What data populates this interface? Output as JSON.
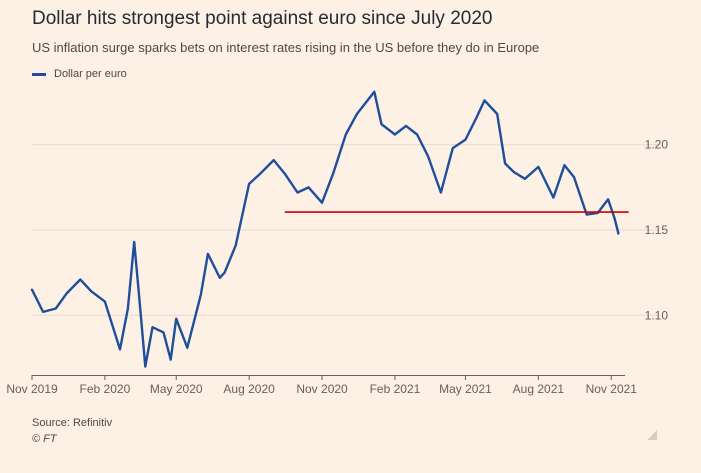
{
  "header": {
    "title": "Dollar hits strongest point against euro since July 2020",
    "subtitle": "US inflation surge sparks bets on interest rates rising in the US before they do in Europe"
  },
  "footer": {
    "source": "Source: Refinitiv",
    "copyright": "© FT"
  },
  "colors": {
    "series": "#1f4e9c",
    "reference_line": "#cc0000",
    "grid": "#e6d9ce",
    "axis": "#66605c",
    "background": "#fdf1e5"
  },
  "chart_data": {
    "type": "line",
    "title": "Dollar hits strongest point against euro since July 2020",
    "subtitle": "US inflation surge sparks bets on interest rates rising in the US before they do in Europe",
    "legend_position": "top-left",
    "grid": "horizontal",
    "x_ticks": [
      "Nov 2019",
      "Feb 2020",
      "May 2020",
      "Aug 2020",
      "Nov 2020",
      "Feb 2021",
      "May 2021",
      "Aug 2021",
      "Nov 2021"
    ],
    "y_ticks": [
      "1.10",
      "1.15",
      "1.20"
    ],
    "ylim": [
      1.065,
      1.235
    ],
    "xlim": [
      "2019-11-01",
      "2021-11-12"
    ],
    "y_axis_side": "right",
    "series": [
      {
        "name": "Dollar per euro",
        "color": "#1f4e9c",
        "points": [
          [
            "2019-11-01",
            1.115
          ],
          [
            "2019-11-15",
            1.102
          ],
          [
            "2019-12-01",
            1.104
          ],
          [
            "2019-12-15",
            1.113
          ],
          [
            "2020-01-01",
            1.121
          ],
          [
            "2020-01-15",
            1.114
          ],
          [
            "2020-02-01",
            1.108
          ],
          [
            "2020-02-20",
            1.08
          ],
          [
            "2020-03-01",
            1.104
          ],
          [
            "2020-03-09",
            1.143
          ],
          [
            "2020-03-15",
            1.112
          ],
          [
            "2020-03-23",
            1.07
          ],
          [
            "2020-04-01",
            1.093
          ],
          [
            "2020-04-15",
            1.09
          ],
          [
            "2020-04-24",
            1.074
          ],
          [
            "2020-05-01",
            1.098
          ],
          [
            "2020-05-15",
            1.081
          ],
          [
            "2020-06-01",
            1.112
          ],
          [
            "2020-06-10",
            1.136
          ],
          [
            "2020-06-25",
            1.122
          ],
          [
            "2020-07-01",
            1.125
          ],
          [
            "2020-07-15",
            1.141
          ],
          [
            "2020-08-01",
            1.177
          ],
          [
            "2020-08-15",
            1.183
          ],
          [
            "2020-09-01",
            1.191
          ],
          [
            "2020-09-15",
            1.183
          ],
          [
            "2020-10-01",
            1.172
          ],
          [
            "2020-10-15",
            1.175
          ],
          [
            "2020-11-01",
            1.166
          ],
          [
            "2020-11-15",
            1.183
          ],
          [
            "2020-12-01",
            1.206
          ],
          [
            "2020-12-15",
            1.218
          ],
          [
            "2021-01-06",
            1.231
          ],
          [
            "2021-01-15",
            1.212
          ],
          [
            "2021-02-01",
            1.206
          ],
          [
            "2021-02-15",
            1.211
          ],
          [
            "2021-03-01",
            1.206
          ],
          [
            "2021-03-15",
            1.193
          ],
          [
            "2021-03-31",
            1.172
          ],
          [
            "2021-04-15",
            1.198
          ],
          [
            "2021-05-01",
            1.203
          ],
          [
            "2021-05-15",
            1.216
          ],
          [
            "2021-05-25",
            1.226
          ],
          [
            "2021-06-10",
            1.218
          ],
          [
            "2021-06-20",
            1.189
          ],
          [
            "2021-07-01",
            1.184
          ],
          [
            "2021-07-15",
            1.18
          ],
          [
            "2021-08-01",
            1.187
          ],
          [
            "2021-08-20",
            1.169
          ],
          [
            "2021-09-03",
            1.188
          ],
          [
            "2021-09-15",
            1.181
          ],
          [
            "2021-10-01",
            1.159
          ],
          [
            "2021-10-15",
            1.16
          ],
          [
            "2021-10-28",
            1.168
          ],
          [
            "2021-11-05",
            1.157
          ],
          [
            "2021-11-10",
            1.148
          ]
        ]
      }
    ],
    "reference_line": {
      "y": 1.1605,
      "x_start": "2020-09-15",
      "x_end": "2021-11-23",
      "color": "#cc0000"
    }
  }
}
